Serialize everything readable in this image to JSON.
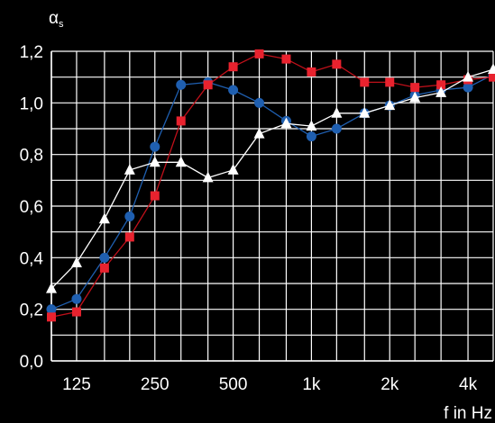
{
  "chart_data": {
    "type": "line",
    "ylabel": "α",
    "ylabel_sub": "s",
    "xlabel": "f  in Hz",
    "ylim": [
      0,
      1.2
    ],
    "yticks": [
      "0,0",
      "0,2",
      "0,4",
      "0,6",
      "0,8",
      "1,0",
      "1,2"
    ],
    "ytick_values": [
      0,
      0.2,
      0.4,
      0.6,
      0.8,
      1.0,
      1.2
    ],
    "x_scale": "log",
    "xlim": [
      100,
      5000
    ],
    "xticks": [
      "125",
      "250",
      "500",
      "1k",
      "2k",
      "4k"
    ],
    "xtick_values": [
      125,
      250,
      500,
      1000,
      2000,
      4000
    ],
    "grid": true,
    "x": [
      100,
      125,
      160,
      200,
      250,
      315,
      400,
      500,
      630,
      800,
      1000,
      1250,
      1600,
      2000,
      2500,
      3150,
      4000,
      5000
    ],
    "series": [
      {
        "color": "#1f5fb0",
        "stroke": "#1f5fb0",
        "marker": "circle",
        "values": [
          0.2,
          0.24,
          0.4,
          0.56,
          0.83,
          1.07,
          1.08,
          1.05,
          1.0,
          0.93,
          0.87,
          0.9,
          0.96,
          0.99,
          1.03,
          1.05,
          1.06,
          1.11
        ]
      },
      {
        "color": "#e8222e",
        "stroke": "#c0101a",
        "marker": "square",
        "values": [
          0.17,
          0.19,
          0.36,
          0.48,
          0.64,
          0.93,
          1.07,
          1.14,
          1.19,
          1.17,
          1.12,
          1.15,
          1.08,
          1.08,
          1.06,
          1.07,
          1.09,
          1.1
        ]
      },
      {
        "color": "#ffffff",
        "stroke": "#ffffff",
        "marker": "triangle",
        "values": [
          0.28,
          0.38,
          0.55,
          0.74,
          0.77,
          0.77,
          0.71,
          0.74,
          0.88,
          0.92,
          0.91,
          0.96,
          0.96,
          0.99,
          1.02,
          1.04,
          1.1,
          1.13
        ]
      }
    ]
  }
}
